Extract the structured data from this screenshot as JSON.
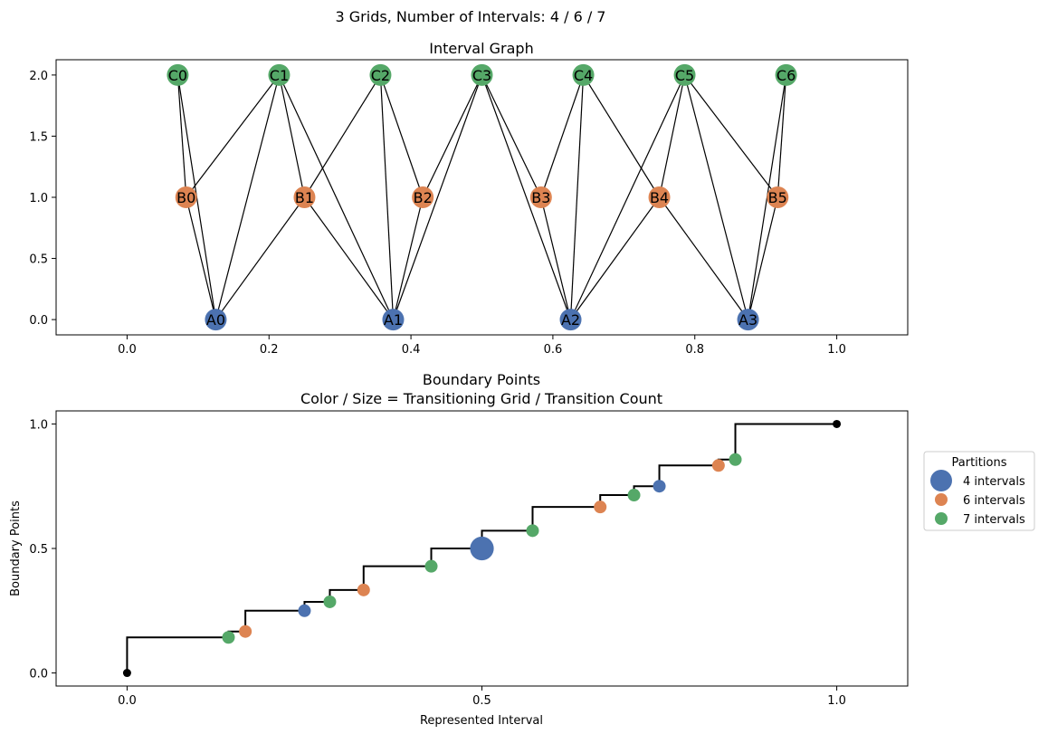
{
  "figure": {
    "suptitle": "3 Grids, Number of Intervals: 4 / 6 / 7"
  },
  "colors": {
    "grid4": "#4c72b0",
    "grid6": "#dd8452",
    "grid7": "#55a868",
    "edge": "#000000",
    "step": "#000000",
    "endpoint": "#000000"
  },
  "chart_data": [
    {
      "type": "network",
      "title": "Interval Graph",
      "xlim": [
        -0.1,
        1.1
      ],
      "ylim": [
        -0.125,
        2.125
      ],
      "xticks": [
        0.0,
        0.2,
        0.4,
        0.6,
        0.8,
        1.0
      ],
      "xtick_labels": [
        "0.0",
        "0.2",
        "0.4",
        "0.6",
        "0.8",
        "1.0"
      ],
      "yticks": [
        0.0,
        0.5,
        1.0,
        1.5,
        2.0
      ],
      "ytick_labels": [
        "0.0",
        "0.5",
        "1.0",
        "1.5",
        "2.0"
      ],
      "nodes": [
        {
          "id": "A0",
          "x": 0.125,
          "y": 0,
          "grid": "grid4"
        },
        {
          "id": "A1",
          "x": 0.375,
          "y": 0,
          "grid": "grid4"
        },
        {
          "id": "A2",
          "x": 0.625,
          "y": 0,
          "grid": "grid4"
        },
        {
          "id": "A3",
          "x": 0.875,
          "y": 0,
          "grid": "grid4"
        },
        {
          "id": "B0",
          "x": 0.0833,
          "y": 1,
          "grid": "grid6"
        },
        {
          "id": "B1",
          "x": 0.25,
          "y": 1,
          "grid": "grid6"
        },
        {
          "id": "B2",
          "x": 0.4167,
          "y": 1,
          "grid": "grid6"
        },
        {
          "id": "B3",
          "x": 0.5833,
          "y": 1,
          "grid": "grid6"
        },
        {
          "id": "B4",
          "x": 0.75,
          "y": 1,
          "grid": "grid6"
        },
        {
          "id": "B5",
          "x": 0.9167,
          "y": 1,
          "grid": "grid6"
        },
        {
          "id": "C0",
          "x": 0.0714,
          "y": 2,
          "grid": "grid7"
        },
        {
          "id": "C1",
          "x": 0.2143,
          "y": 2,
          "grid": "grid7"
        },
        {
          "id": "C2",
          "x": 0.3571,
          "y": 2,
          "grid": "grid7"
        },
        {
          "id": "C3",
          "x": 0.5,
          "y": 2,
          "grid": "grid7"
        },
        {
          "id": "C4",
          "x": 0.6429,
          "y": 2,
          "grid": "grid7"
        },
        {
          "id": "C5",
          "x": 0.7857,
          "y": 2,
          "grid": "grid7"
        },
        {
          "id": "C6",
          "x": 0.9286,
          "y": 2,
          "grid": "grid7"
        }
      ],
      "edges": [
        [
          "A0",
          "B0"
        ],
        [
          "A0",
          "B1"
        ],
        [
          "A0",
          "C0"
        ],
        [
          "A0",
          "C1"
        ],
        [
          "A1",
          "B1"
        ],
        [
          "A1",
          "B2"
        ],
        [
          "A1",
          "C1"
        ],
        [
          "A1",
          "C2"
        ],
        [
          "A1",
          "C3"
        ],
        [
          "A2",
          "B3"
        ],
        [
          "A2",
          "B4"
        ],
        [
          "A2",
          "C3"
        ],
        [
          "A2",
          "C4"
        ],
        [
          "A2",
          "C5"
        ],
        [
          "A3",
          "B4"
        ],
        [
          "A3",
          "B5"
        ],
        [
          "A3",
          "C5"
        ],
        [
          "A3",
          "C6"
        ],
        [
          "B0",
          "C0"
        ],
        [
          "B0",
          "C1"
        ],
        [
          "B1",
          "C1"
        ],
        [
          "B1",
          "C2"
        ],
        [
          "B2",
          "C2"
        ],
        [
          "B2",
          "C3"
        ],
        [
          "B3",
          "C3"
        ],
        [
          "B3",
          "C4"
        ],
        [
          "B4",
          "C4"
        ],
        [
          "B4",
          "C5"
        ],
        [
          "B5",
          "C5"
        ],
        [
          "B5",
          "C6"
        ]
      ]
    },
    {
      "type": "step-scatter",
      "title_lines": [
        "Boundary Points",
        "Color / Size = Transitioning Grid / Transition Count"
      ],
      "xlabel": "Represented Interval",
      "ylabel": "Boundary Points",
      "xlim": [
        -0.1,
        1.1
      ],
      "ylim": [
        -0.0525,
        1.0525
      ],
      "xticks": [
        0.0,
        0.5,
        1.0
      ],
      "xtick_labels": [
        "0.0",
        "0.5",
        "1.0"
      ],
      "yticks": [
        0.0,
        0.5,
        1.0
      ],
      "ytick_labels": [
        "0.0",
        "0.5",
        "1.0"
      ],
      "step_x": [
        0,
        0.1429,
        0.1667,
        0.25,
        0.2857,
        0.3333,
        0.4286,
        0.5,
        0.5714,
        0.6667,
        0.7143,
        0.75,
        0.8333,
        0.8571,
        1
      ],
      "step_y": [
        0,
        0.1429,
        0.1667,
        0.25,
        0.2857,
        0.3333,
        0.4286,
        0.5,
        0.5714,
        0.6667,
        0.7143,
        0.75,
        0.8333,
        0.8571,
        1
      ],
      "endpoints": [
        {
          "x": 0,
          "y": 0
        },
        {
          "x": 1,
          "y": 1
        }
      ],
      "points": [
        {
          "x": 0.1429,
          "y": 0.1429,
          "grid": "grid7",
          "count": 1
        },
        {
          "x": 0.1667,
          "y": 0.1667,
          "grid": "grid6",
          "count": 1
        },
        {
          "x": 0.25,
          "y": 0.25,
          "grid": "grid4",
          "count": 1
        },
        {
          "x": 0.2857,
          "y": 0.2857,
          "grid": "grid7",
          "count": 1
        },
        {
          "x": 0.3333,
          "y": 0.3333,
          "grid": "grid6",
          "count": 1
        },
        {
          "x": 0.4286,
          "y": 0.4286,
          "grid": "grid7",
          "count": 1
        },
        {
          "x": 0.5,
          "y": 0.5,
          "grid": "grid4",
          "count": 3
        },
        {
          "x": 0.5714,
          "y": 0.5714,
          "grid": "grid7",
          "count": 1
        },
        {
          "x": 0.6667,
          "y": 0.6667,
          "grid": "grid6",
          "count": 1
        },
        {
          "x": 0.7143,
          "y": 0.7143,
          "grid": "grid7",
          "count": 1
        },
        {
          "x": 0.75,
          "y": 0.75,
          "grid": "grid4",
          "count": 1
        },
        {
          "x": 0.8333,
          "y": 0.8333,
          "grid": "grid6",
          "count": 1
        },
        {
          "x": 0.8571,
          "y": 0.8571,
          "grid": "grid7",
          "count": 1
        }
      ],
      "legend": {
        "title": "Partitions",
        "placement": "outside-right",
        "entries": [
          {
            "label": "4 intervals",
            "grid": "grid4"
          },
          {
            "label": "6 intervals",
            "grid": "grid6"
          },
          {
            "label": "7 intervals",
            "grid": "grid7"
          }
        ]
      }
    }
  ]
}
